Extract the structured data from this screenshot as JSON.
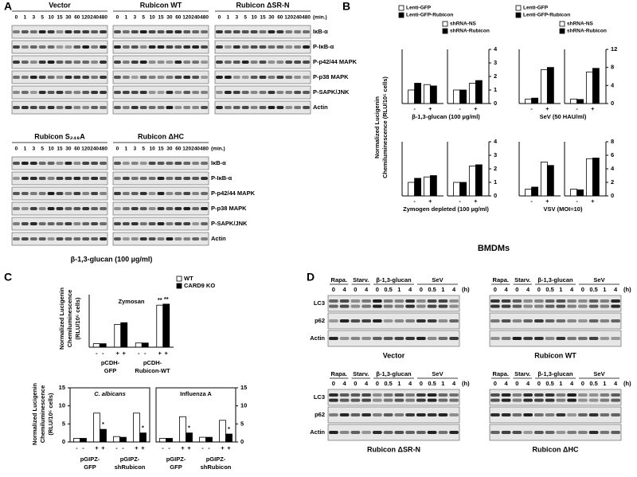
{
  "panel_A": {
    "label": "A",
    "times": [
      "0",
      "1",
      "3",
      "5",
      "10",
      "15",
      "30",
      "60",
      "120",
      "240",
      "480"
    ],
    "unit": "(min.)",
    "rows": [
      "IκB-α",
      "P-IκB-α",
      "P-p42/44 MAPK",
      "P-p38 MAPK",
      "P-SAPK/JNK",
      "Actin"
    ],
    "groups": [
      {
        "headers": [
          "Vector",
          "Rubicon WT",
          "Rubicon ΔSR-N"
        ]
      },
      {
        "headers": [
          "Rubicon S₂₄₈A",
          "Rubicon ΔHC"
        ]
      }
    ],
    "caption": "β-1,3-glucan (100 µg/ml)"
  },
  "panel_B": {
    "label": "B",
    "legends": [
      [
        "Lenti-GFP",
        "Lenti-GFP-Rubicon"
      ],
      [
        "shRNA-NS",
        "shRNA-Rubicon"
      ]
    ],
    "legend_colors": [
      "#ffffff",
      "#000000"
    ],
    "y_label": [
      "Normalized  Lucigenin",
      "Chemiluminescence (RLU/10⁵ cells)"
    ],
    "x_ticks": [
      "-",
      "+"
    ],
    "footer": "BMDMs",
    "charts": [
      {
        "caption": "β-1,3-glucan (100 µg/ml)",
        "ylim": [
          0,
          4
        ],
        "yticks": [
          0,
          1,
          2,
          3,
          4
        ],
        "subplots": [
          {
            "series": [
              {
                "color": "#ffffff",
                "values": [
                  1.0,
                  1.4
                ]
              },
              {
                "color": "#000000",
                "values": [
                  1.5,
                  1.3
                ]
              }
            ]
          },
          {
            "series": [
              {
                "color": "#ffffff",
                "values": [
                  1.0,
                  1.5
                ]
              },
              {
                "color": "#000000",
                "values": [
                  1.0,
                  1.7
                ]
              }
            ]
          }
        ]
      },
      {
        "caption": "SeV (50 HAU/ml)",
        "ylim": [
          0,
          12
        ],
        "yticks": [
          0,
          4,
          8,
          12
        ],
        "subplots": [
          {
            "series": [
              {
                "color": "#ffffff",
                "values": [
                  1.0,
                  7.5
                ]
              },
              {
                "color": "#000000",
                "values": [
                  1.2,
                  8.0
                ]
              }
            ]
          },
          {
            "series": [
              {
                "color": "#ffffff",
                "values": [
                  1.0,
                  7.0
                ]
              },
              {
                "color": "#000000",
                "values": [
                  0.9,
                  7.8
                ]
              }
            ]
          }
        ]
      },
      {
        "caption": "Zymogen depleted (100 µg/ml)",
        "ylim": [
          0,
          4
        ],
        "yticks": [
          0,
          1,
          2,
          3,
          4
        ],
        "subplots": [
          {
            "series": [
              {
                "color": "#ffffff",
                "values": [
                  1.0,
                  1.4
                ]
              },
              {
                "color": "#000000",
                "values": [
                  1.3,
                  1.5
                ]
              }
            ]
          },
          {
            "series": [
              {
                "color": "#ffffff",
                "values": [
                  1.0,
                  2.2
                ]
              },
              {
                "color": "#000000",
                "values": [
                  1.0,
                  2.3
                ]
              }
            ]
          }
        ]
      },
      {
        "caption": "VSV (MOI=10)",
        "ylim": [
          0,
          8
        ],
        "yticks": [
          0,
          2,
          4,
          6,
          8
        ],
        "subplots": [
          {
            "series": [
              {
                "color": "#ffffff",
                "values": [
                  1.0,
                  5.0
                ]
              },
              {
                "color": "#000000",
                "values": [
                  1.3,
                  4.5
                ]
              }
            ]
          },
          {
            "series": [
              {
                "color": "#ffffff",
                "values": [
                  1.0,
                  5.5
                ]
              },
              {
                "color": "#000000",
                "values": [
                  0.9,
                  5.6
                ]
              }
            ]
          }
        ]
      }
    ]
  },
  "panel_C": {
    "label": "C",
    "legend": [
      "WT",
      "CARD9 KO"
    ],
    "legend_colors": [
      "#ffffff",
      "#000000"
    ],
    "x_ticks": [
      "-",
      "-",
      "+",
      "+"
    ],
    "top": {
      "y_label": [
        "Normalized  Lucigenin",
        "Chemiluminescence",
        "(RLU/10⁵ cells)"
      ],
      "title": "Zymosan",
      "ylim": [
        0,
        15
      ],
      "groups": [
        [
          "pCDH-",
          "GFP"
        ],
        [
          "pCDH-",
          "Rubicon-WT"
        ]
      ],
      "series": [
        {
          "color": "#ffffff",
          "values": [
            1.0,
            6.5,
            1.2,
            12.0
          ],
          "significance": [
            null,
            null,
            null,
            "**"
          ]
        },
        {
          "color": "#000000",
          "values": [
            1.0,
            7.0,
            1.2,
            12.3
          ],
          "significance": [
            null,
            null,
            null,
            "**"
          ]
        }
      ]
    },
    "bottom": {
      "y_label": [
        "Normalized  Lucigenin",
        "Chemiluminescence",
        "(RLU/10⁵ cells)"
      ],
      "ylim": [
        0,
        15
      ],
      "yticks": [
        0,
        5,
        10,
        15
      ],
      "groups": [
        [
          "pGIPZ-",
          "GFP"
        ],
        [
          "pGIPZ-",
          "shRubicon"
        ]
      ],
      "charts": [
        {
          "title": "C. albicans",
          "italic": true,
          "series": [
            {
              "color": "#ffffff",
              "values": [
                1.0,
                8.0,
                1.5,
                8.0
              ],
              "significance": [
                null,
                null,
                null,
                null
              ]
            },
            {
              "color": "#000000",
              "values": [
                1.0,
                3.5,
                1.3,
                2.5
              ],
              "significance": [
                null,
                "*",
                null,
                "*"
              ]
            }
          ]
        },
        {
          "title": "Influenza A",
          "italic": false,
          "series": [
            {
              "color": "#ffffff",
              "values": [
                1.0,
                7.0,
                1.3,
                6.0
              ],
              "significance": [
                null,
                null,
                null,
                null
              ]
            },
            {
              "color": "#000000",
              "values": [
                1.0,
                2.5,
                1.3,
                2.2
              ],
              "significance": [
                null,
                "*",
                null,
                "*"
              ]
            }
          ]
        }
      ]
    }
  },
  "panel_D": {
    "label": "D",
    "headers": [
      "Rapa.",
      "Starv.",
      "β-1,3-glucan",
      "SeV"
    ],
    "times": [
      "0",
      "4",
      "0",
      "4",
      "0",
      "0.5",
      "1",
      "4",
      "0",
      "0.5",
      "1",
      "4"
    ],
    "unit": "(h)",
    "rows": [
      "LC3",
      "p62",
      "Actin"
    ],
    "blots": [
      "Vector",
      "Rubicon WT",
      "Rubicon ΔSR-N",
      "Rubicon ΔHC"
    ]
  }
}
